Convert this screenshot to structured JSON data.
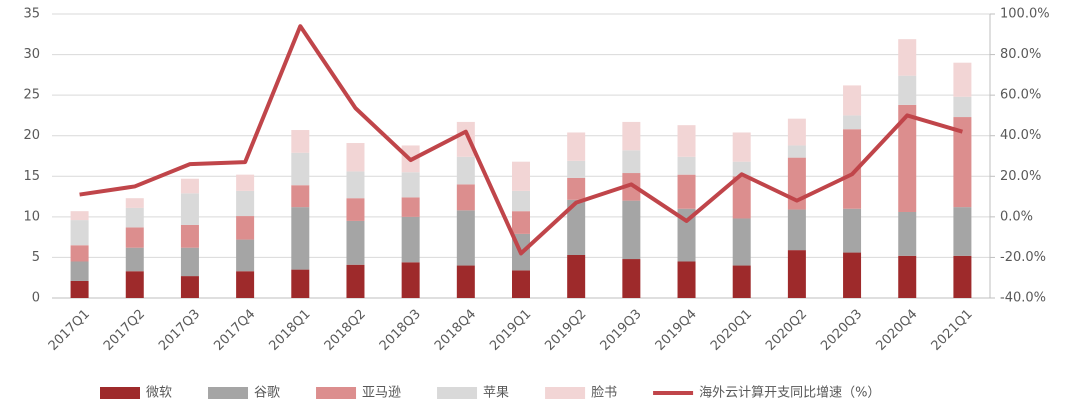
{
  "chart_data": {
    "type": "stacked_bar",
    "categories": [
      "2017Q1",
      "2017Q2",
      "2017Q3",
      "2017Q4",
      "2018Q1",
      "2018Q2",
      "2018Q3",
      "2018Q4",
      "2019Q1",
      "2019Q2",
      "2019Q3",
      "2019Q4",
      "2020Q1",
      "2020Q2",
      "2020Q3",
      "2020Q4",
      "2021Q1"
    ],
    "series": [
      {
        "name": "微软",
        "color": "#9e2a2b",
        "values": [
          2.1,
          3.3,
          2.7,
          3.3,
          3.5,
          4.1,
          4.4,
          4.0,
          3.4,
          5.3,
          4.8,
          4.5,
          4.0,
          5.9,
          5.6,
          5.2,
          5.2
        ]
      },
      {
        "name": "谷歌",
        "color": "#a5a5a5",
        "values": [
          2.4,
          2.9,
          3.5,
          3.9,
          7.7,
          5.4,
          5.6,
          6.8,
          4.5,
          6.8,
          7.2,
          6.5,
          5.8,
          5.0,
          5.4,
          5.4,
          6.0
        ]
      },
      {
        "name": "亚马逊",
        "color": "#dc8e8e",
        "values": [
          2.0,
          2.5,
          2.8,
          2.9,
          2.7,
          2.8,
          2.4,
          3.2,
          2.8,
          2.7,
          3.4,
          4.2,
          5.2,
          6.4,
          9.8,
          13.2,
          11.1
        ]
      },
      {
        "name": "苹果",
        "color": "#d9d9d9",
        "values": [
          3.1,
          2.4,
          3.9,
          3.1,
          4.0,
          3.3,
          3.1,
          3.4,
          2.5,
          2.1,
          2.8,
          2.2,
          1.8,
          1.5,
          1.7,
          3.6,
          2.5
        ]
      },
      {
        "name": "脸书",
        "color": "#f2d5d5",
        "values": [
          1.1,
          1.2,
          1.8,
          2.0,
          2.8,
          3.5,
          3.3,
          4.3,
          3.6,
          3.5,
          3.5,
          3.9,
          3.6,
          3.3,
          3.7,
          4.5,
          4.2
        ]
      },
      {
        "name": "海外云计算开支同比增速（%）",
        "color": "#c0454a",
        "type": "line",
        "axis": "y2",
        "values": [
          11,
          15,
          26,
          27,
          94,
          53.6,
          28,
          42,
          -18,
          7,
          16,
          -2,
          21,
          8,
          21,
          50,
          42
        ]
      }
    ],
    "ylim": [
      0,
      35
    ],
    "yticks": [
      0,
      5,
      10,
      15,
      20,
      25,
      30,
      35
    ],
    "y2lim": [
      -40,
      100
    ],
    "y2ticks": [
      {
        "value": -40,
        "label": "-40.0%"
      },
      {
        "value": -20,
        "label": "-20.0%"
      },
      {
        "value": 0,
        "label": "0.0%"
      },
      {
        "value": 20,
        "label": "20.0%"
      },
      {
        "value": 40,
        "label": "40.0%"
      },
      {
        "value": 60,
        "label": "60.0%"
      },
      {
        "value": 80,
        "label": "80.0%"
      },
      {
        "value": 100,
        "label": "100.0%"
      }
    ],
    "grid": true,
    "legend": "bottom"
  }
}
